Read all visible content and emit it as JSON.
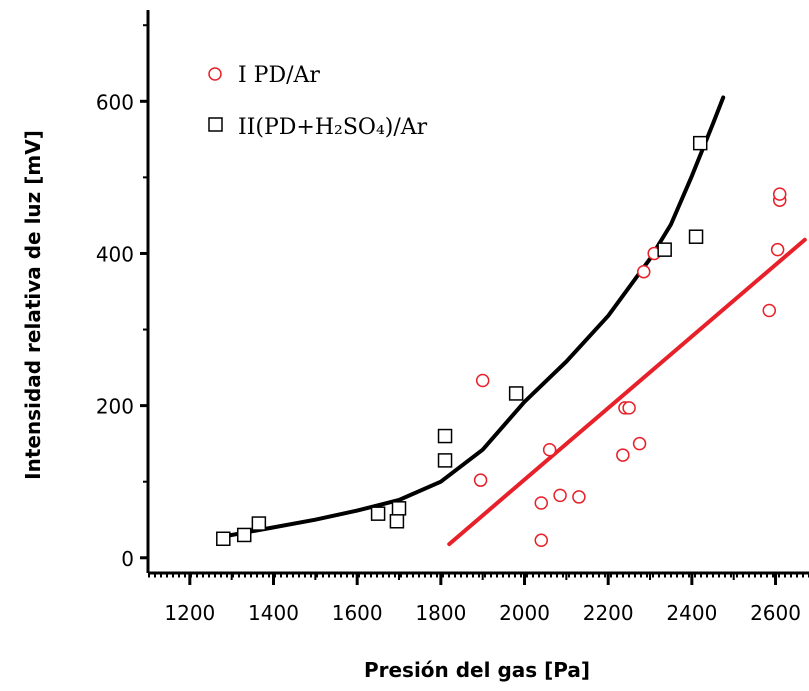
{
  "chart_data": {
    "type": "scatter",
    "title": "",
    "xlabel": "Presión del gas [Pa]",
    "ylabel": "Intensidad relativa de luz [mV]",
    "xlim": [
      1100,
      2680
    ],
    "ylim": [
      -20,
      720
    ],
    "x_ticks": [
      1200,
      1400,
      1600,
      1800,
      2000,
      2200,
      2400,
      2600
    ],
    "y_ticks": [
      0,
      200,
      400,
      600
    ],
    "grid": false,
    "legend_position": "top-left",
    "colors": {
      "series_I": "#e8202a",
      "series_II": "#000000"
    },
    "series": [
      {
        "name": "I PD/Ar",
        "marker": "circle",
        "color": "#e8202a",
        "points": [
          [
            1895,
            102
          ],
          [
            1900,
            233
          ],
          [
            2040,
            23
          ],
          [
            2040,
            72
          ],
          [
            2060,
            142
          ],
          [
            2085,
            82
          ],
          [
            2130,
            80
          ],
          [
            2235,
            135
          ],
          [
            2240,
            197
          ],
          [
            2250,
            197
          ],
          [
            2275,
            150
          ],
          [
            2285,
            376
          ],
          [
            2310,
            400
          ],
          [
            2585,
            325
          ],
          [
            2605,
            405
          ],
          [
            2610,
            470
          ],
          [
            2610,
            478
          ]
        ],
        "fit": {
          "type": "linear",
          "x": [
            1820,
            2670
          ],
          "y": [
            18,
            418
          ]
        }
      },
      {
        "name": "II(PD+H₂SO₄)/Ar",
        "marker": "square",
        "color": "#000000",
        "points": [
          [
            1280,
            25
          ],
          [
            1330,
            30
          ],
          [
            1365,
            45
          ],
          [
            1650,
            58
          ],
          [
            1695,
            48
          ],
          [
            1700,
            65
          ],
          [
            1810,
            128
          ],
          [
            1810,
            160
          ],
          [
            1980,
            216
          ],
          [
            2335,
            405
          ],
          [
            2410,
            422
          ],
          [
            2420,
            545
          ]
        ],
        "fit": {
          "type": "curve",
          "points": [
            [
              1280,
              28
            ],
            [
              1400,
              40
            ],
            [
              1500,
              50
            ],
            [
              1600,
              62
            ],
            [
              1700,
              76
            ],
            [
              1800,
              100
            ],
            [
              1900,
              142
            ],
            [
              2000,
              205
            ],
            [
              2100,
              258
            ],
            [
              2200,
              318
            ],
            [
              2300,
              393
            ],
            [
              2350,
              438
            ],
            [
              2400,
              502
            ],
            [
              2450,
              570
            ],
            [
              2475,
              605
            ]
          ]
        }
      }
    ]
  }
}
